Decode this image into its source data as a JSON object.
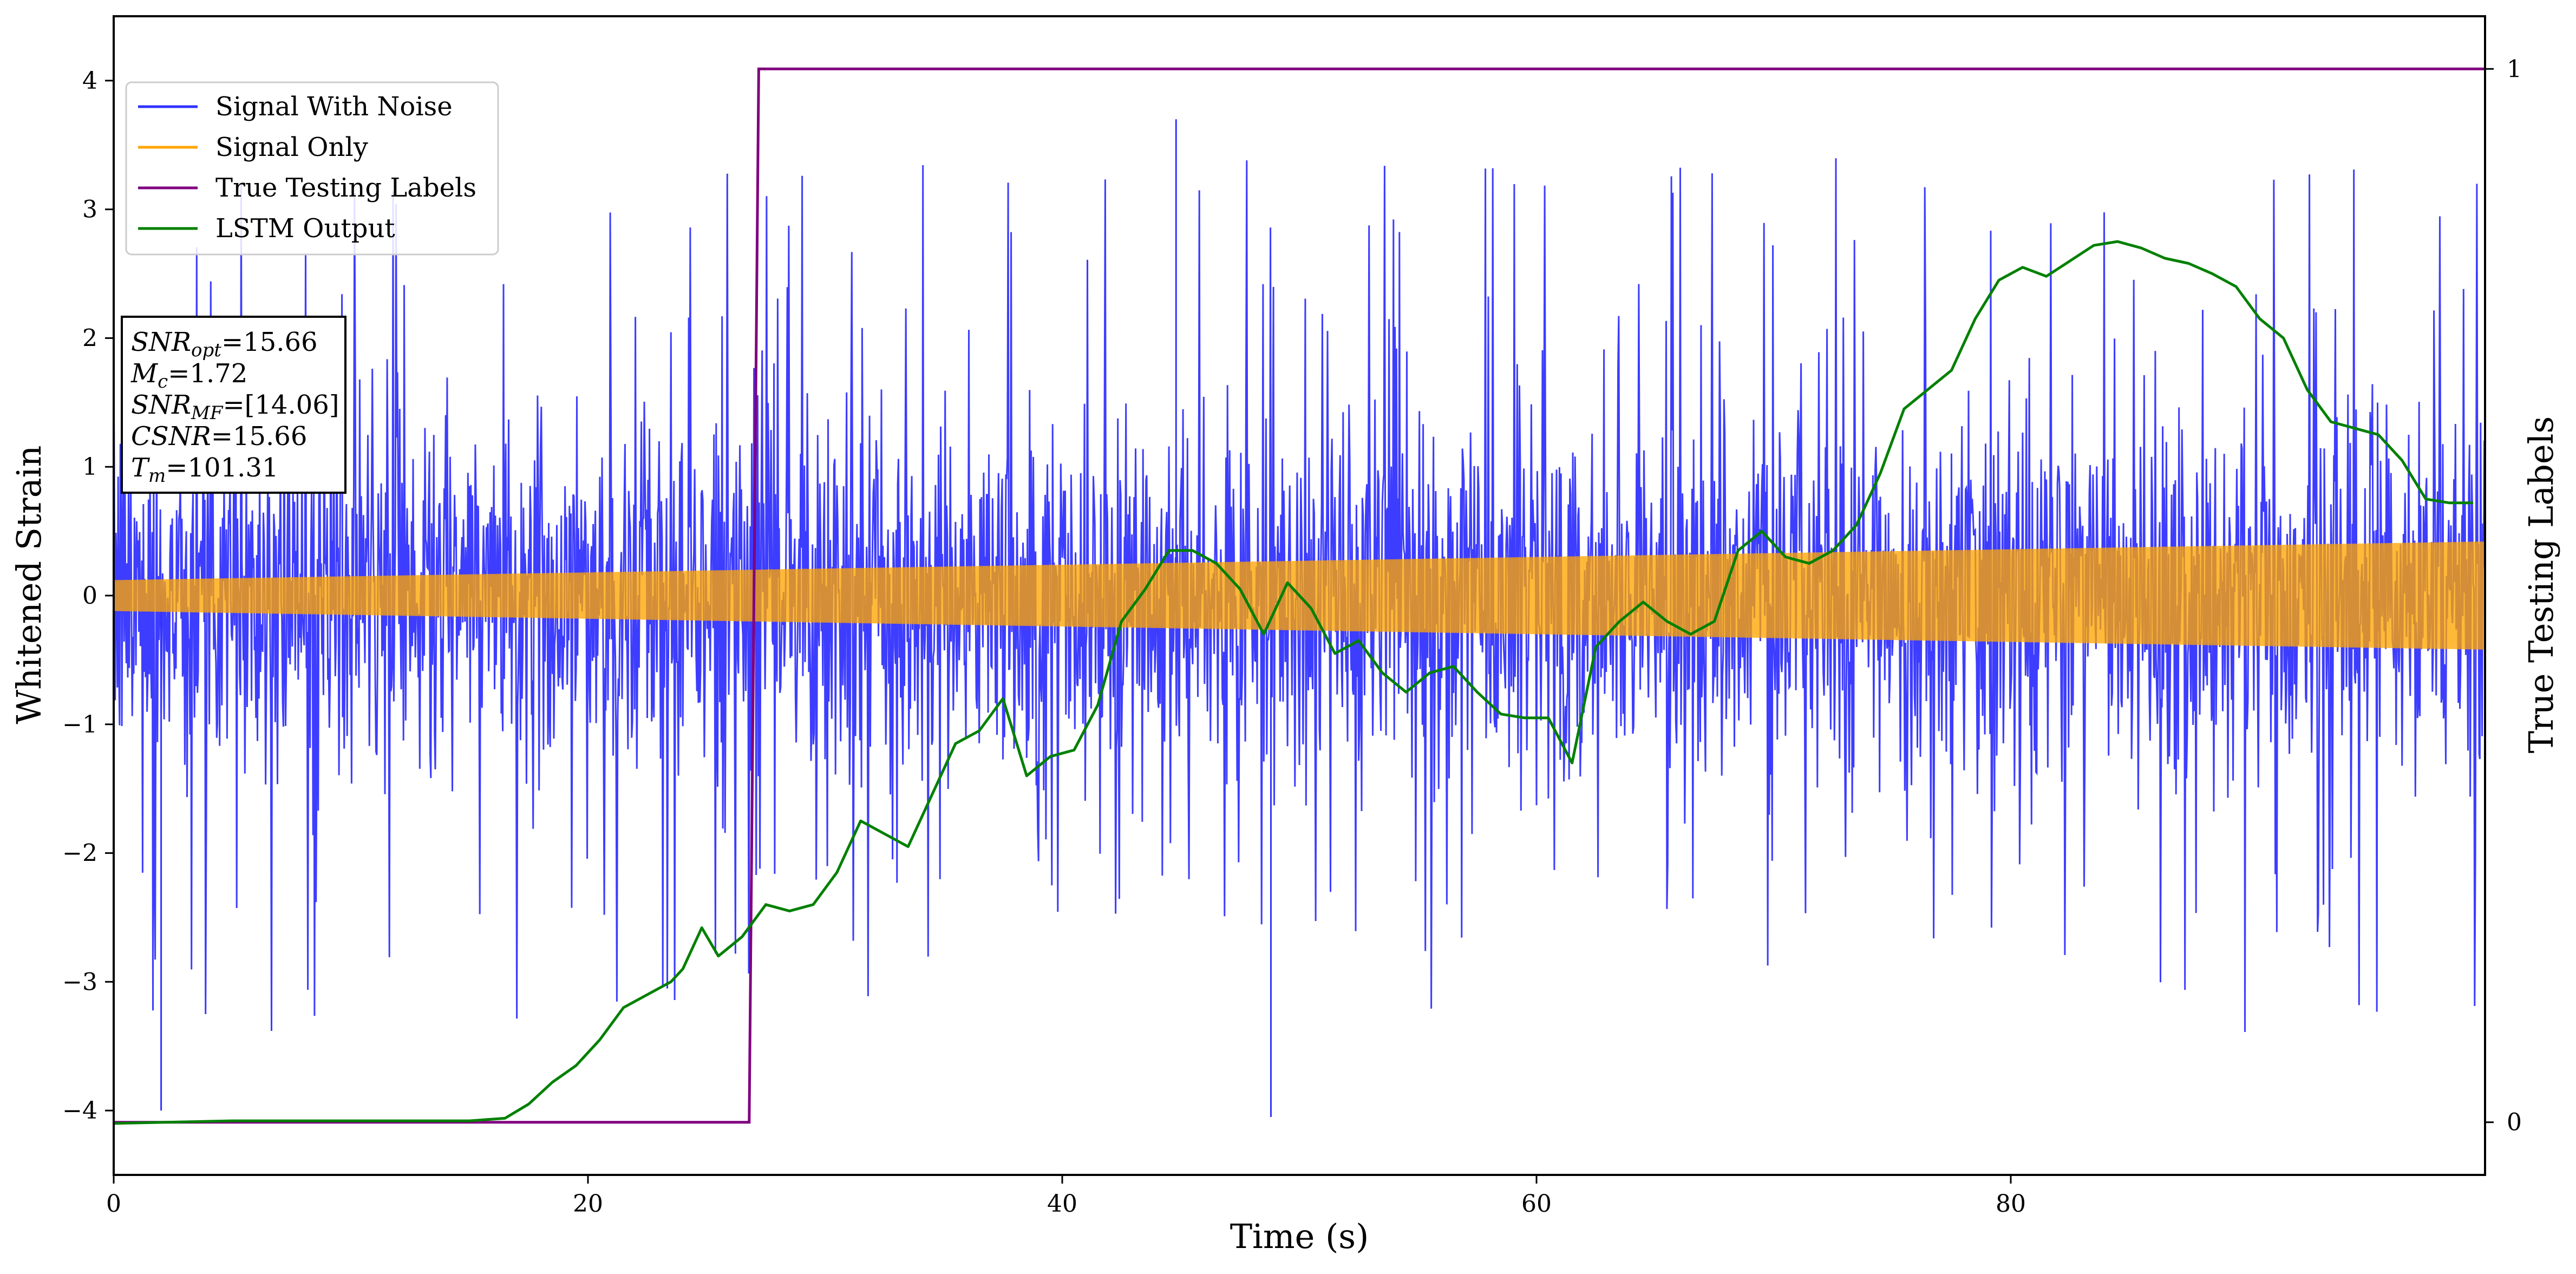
{
  "chart_data": {
    "type": "line",
    "title": "",
    "xlabel": "Time (s)",
    "ylabel": "Whitened Strain",
    "ylabel_right": "True Testing Labels",
    "xlim": [
      0,
      100
    ],
    "ylim": [
      -4.5,
      4.5
    ],
    "ylim_right": [
      -0.05,
      1.05
    ],
    "x_ticks": [
      0,
      20,
      40,
      60,
      80
    ],
    "y_ticks": [
      -4,
      -3,
      -2,
      -1,
      0,
      1,
      2,
      3,
      4
    ],
    "y_ticks_right": [
      0,
      1
    ],
    "grid": false,
    "legend_position": "upper-left",
    "series": [
      {
        "name": "Signal With Noise",
        "axis": "left",
        "color": "#3333ff",
        "style": "dense noise, roughly ±1.3 typical, spikes to about ±3.7",
        "notable_extremes": {
          "max": 3.7,
          "min": -4.05
        }
      },
      {
        "name": "Signal Only",
        "axis": "left",
        "color": "#ffa500",
        "style": "chirp oscillation whose envelope grows from ±0.12 at t=0 to about ±0.42 at t=100",
        "envelope": {
          "x": [
            0,
            100
          ],
          "amplitude": [
            0.12,
            0.42
          ]
        }
      },
      {
        "name": "True Testing Labels",
        "axis": "right",
        "color": "#800080",
        "step": {
          "x": [
            0,
            26.8,
            27.2,
            100
          ],
          "y": [
            0,
            0,
            1,
            1
          ]
        }
      },
      {
        "name": "LSTM Output",
        "axis": "left",
        "color": "#008000",
        "x": [
          0,
          5,
          10,
          15,
          16.5,
          17.5,
          18.5,
          19.5,
          20.5,
          21.5,
          22.5,
          23.5,
          24,
          24.8,
          25.5,
          26.5,
          27.5,
          28.5,
          29.5,
          30.5,
          31.5,
          32.5,
          33.5,
          34.5,
          35.5,
          36.5,
          37.5,
          38.5,
          39.5,
          40.5,
          41.5,
          42.5,
          43.5,
          44.5,
          45.5,
          46.5,
          47.5,
          48.5,
          49.5,
          50.5,
          51.5,
          52.5,
          53.5,
          54.5,
          55.5,
          56.5,
          57.5,
          58.5,
          59.5,
          60.5,
          61.5,
          62.5,
          63.5,
          64.5,
          65.5,
          66.5,
          67.5,
          68.5,
          69.5,
          70.5,
          71.5,
          72.5,
          73.5,
          74.5,
          75.5,
          76.5,
          77.5,
          78.5,
          79.5,
          80.5,
          81.5,
          82.5,
          83.5,
          84.5,
          85.5,
          86.5,
          87.5,
          88.5,
          89.5,
          90.5,
          91.5,
          92.5,
          93.5,
          94.5,
          95.5,
          96.5,
          97.5,
          98.5,
          99.5
        ],
        "y": [
          -4.1,
          -4.08,
          -4.08,
          -4.08,
          -4.06,
          -3.95,
          -3.78,
          -3.65,
          -3.45,
          -3.2,
          -3.1,
          -3.0,
          -2.9,
          -2.58,
          -2.8,
          -2.65,
          -2.4,
          -2.45,
          -2.4,
          -2.15,
          -1.75,
          -1.85,
          -1.95,
          -1.55,
          -1.15,
          -1.05,
          -0.8,
          -1.4,
          -1.25,
          -1.2,
          -0.85,
          -0.2,
          0.05,
          0.35,
          0.35,
          0.25,
          0.05,
          -0.3,
          0.1,
          -0.1,
          -0.45,
          -0.35,
          -0.6,
          -0.75,
          -0.6,
          -0.55,
          -0.75,
          -0.92,
          -0.95,
          -0.95,
          -1.3,
          -0.4,
          -0.2,
          -0.05,
          -0.2,
          -0.3,
          -0.2,
          0.35,
          0.5,
          0.3,
          0.25,
          0.35,
          0.55,
          0.95,
          1.45,
          1.6,
          1.75,
          2.15,
          2.45,
          2.55,
          2.48,
          2.6,
          2.72,
          2.75,
          2.7,
          2.62,
          2.58,
          2.5,
          2.4,
          2.15,
          2.0,
          1.6,
          1.35,
          1.3,
          1.25,
          1.05,
          0.75,
          0.72,
          0.72
        ]
      }
    ],
    "info_box": [
      "SNR_opt=15.66",
      "M_c=1.72",
      "SNR_MF=[14.06]",
      "CSNR=15.66",
      "T_m=101.31"
    ]
  },
  "legend": {
    "items": [
      {
        "label": "Signal With Noise",
        "color": "#3333ff"
      },
      {
        "label": "Signal Only",
        "color": "#ffa500"
      },
      {
        "label": "True Testing Labels",
        "color": "#800080"
      },
      {
        "label": "LSTM Output",
        "color": "#008000"
      }
    ]
  },
  "info": {
    "snr_opt_sym": "SNR",
    "snr_opt_sub": "opt",
    "snr_opt_val": "=15.66",
    "mc_sym": "M",
    "mc_sub": "c",
    "mc_val": "=1.72",
    "snr_mf_sym": "SNR",
    "snr_mf_sub": "MF",
    "snr_mf_val": "=[14.06]",
    "csnr_sym": "CSNR",
    "csnr_val": "=15.66",
    "tm_sym": "T",
    "tm_sub": "m",
    "tm_val": "=101.31"
  }
}
